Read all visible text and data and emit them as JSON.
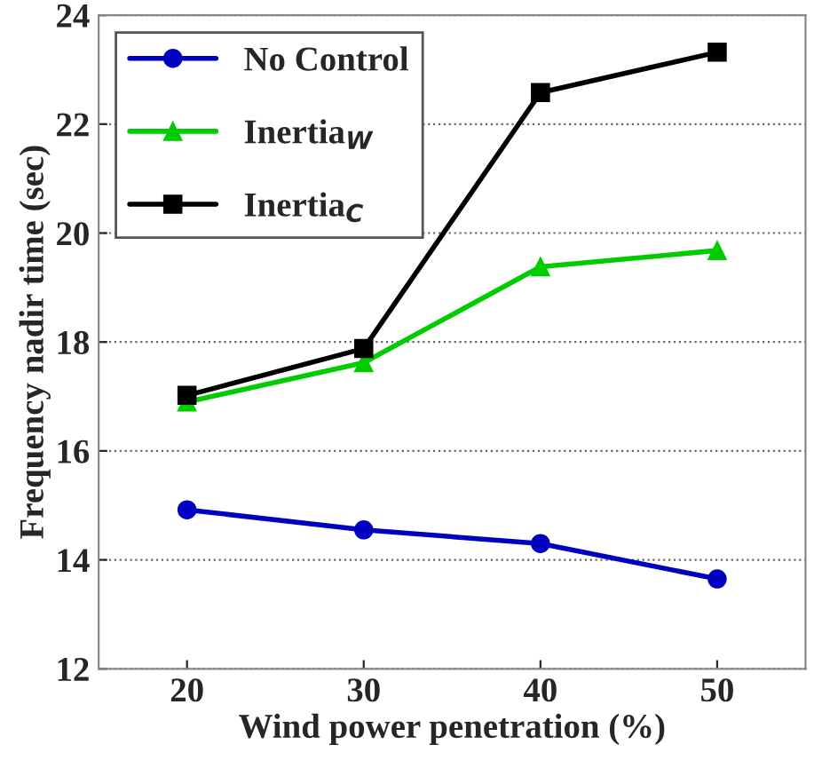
{
  "chart_data": {
    "type": "line",
    "xlabel": "Wind power penetration (%)",
    "ylabel": "Frequency nadir time (sec)",
    "x": [
      20,
      30,
      40,
      50
    ],
    "series": [
      {
        "name": "No Control",
        "color": "#0000c0",
        "marker": "circle",
        "values": [
          14.92,
          14.55,
          14.3,
          13.65
        ]
      },
      {
        "name": "Inertia$_{W}$",
        "color": "#00cc00",
        "marker": "triangle",
        "values": [
          16.9,
          17.62,
          19.38,
          19.68
        ]
      },
      {
        "name": "Inertia$_{C}$",
        "color": "#000000",
        "marker": "square",
        "values": [
          17.02,
          17.88,
          22.58,
          23.32
        ]
      }
    ],
    "xlim": [
      15,
      55
    ],
    "xticks": [
      20,
      30,
      40,
      50
    ],
    "ylim": [
      12,
      24
    ],
    "yticks": [
      12,
      14,
      16,
      18,
      20,
      22,
      24
    ],
    "grid": "y",
    "legend": "top left",
    "line_style": "solid"
  }
}
